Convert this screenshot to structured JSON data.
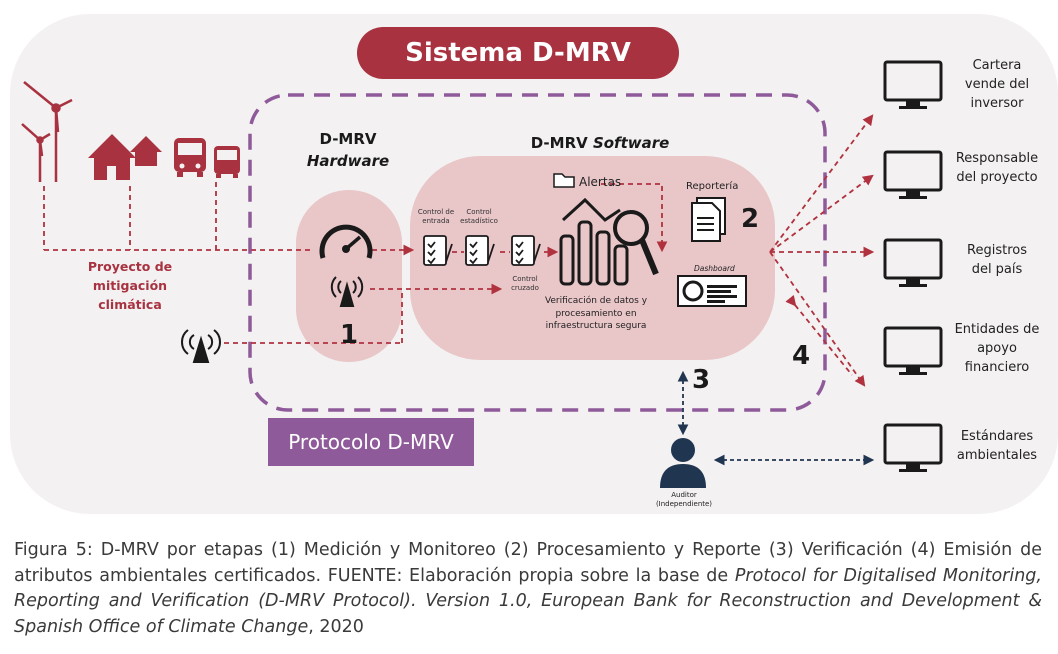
{
  "title": "Sistema D-MRV",
  "protocol_label": "Protocolo D-MRV",
  "project": {
    "line1": "Proyecto de",
    "line2": "mitigación",
    "line3": "climática"
  },
  "hardware": {
    "line1": "D-MRV",
    "line2": "Hardware"
  },
  "software": {
    "prefix": "D-MRV ",
    "suffix": "Software"
  },
  "steps": {
    "control_entrada_1": "Control de",
    "control_entrada_2": "entrada",
    "control_estadistico_1": "Control",
    "control_estadistico_2": "estadístico",
    "control_cruzado_1": "Control",
    "control_cruzado_2": "cruzado"
  },
  "alertas": "Alertas",
  "reporteria": "Reportería",
  "dashboard": "Dashboard",
  "verification": {
    "line1": "Verificación de datos y",
    "line2": "procesamiento en",
    "line3": "infraestructura segura"
  },
  "numbers": {
    "n1": "1",
    "n2": "2",
    "n3": "3",
    "n4": "4"
  },
  "auditor": {
    "line1": "Auditor",
    "line2": "(Independiente)"
  },
  "recipients": [
    {
      "line1": "Cartera",
      "line2": "vende del",
      "line3": "inversor"
    },
    {
      "line1": "Responsable",
      "line2": "del proyecto",
      "line3": ""
    },
    {
      "line1": "Registros",
      "line2": "del país",
      "line3": ""
    },
    {
      "line1": "Entidades de",
      "line2": "apoyo",
      "line3": "financiero"
    },
    {
      "line1": "Estándares",
      "line2": "ambientales",
      "line3": ""
    }
  ],
  "caption": {
    "part1": "Figura 5: D-MRV por etapas (1) Medición y Monitoreo (2) Procesamiento y Reporte (3) Verificación (4) Emisión de atributos ambientales certificados. FUENTE: Elaboración propia sobre la base de ",
    "italic": "Protocol for Digitalised Monitoring, Reporting and Verification (D-MRV Protocol). Version 1.0, European Bank for Reconstruction and Development & Spanish Office of Climate Change",
    "part2": ", 2020"
  },
  "colors": {
    "accent": "#a83240",
    "purple": "#8f5a9a",
    "pink": "#e9c6c8",
    "panel": "#f3f1f1"
  },
  "icons": [
    "wind-turbine-icon",
    "house-icon",
    "bus-icon",
    "gauge-icon",
    "antenna-icon",
    "checklist-icon",
    "bar-chart-magnifier-icon",
    "folder-icon",
    "document-icon",
    "dashboard-icon",
    "monitor-icon",
    "user-icon"
  ]
}
